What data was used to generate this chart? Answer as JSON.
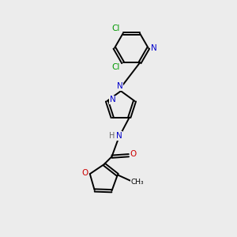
{
  "bg_color": "#ececec",
  "bond_color": "#000000",
  "N_color": "#0000cc",
  "O_color": "#cc0000",
  "Cl_color": "#009900",
  "line_width": 1.4,
  "dbo": 0.055,
  "xlim": [
    0,
    10
  ],
  "ylim": [
    0,
    10
  ]
}
